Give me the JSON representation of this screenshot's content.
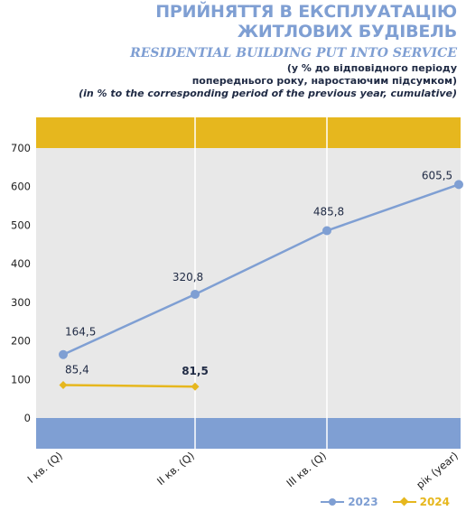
{
  "header": {
    "title_ua_line1": "ПРИЙНЯТТЯ В ЕКСПЛУАТАЦІЮ",
    "title_ua_line2": "ЖИТЛОВИХ БУДІВЕЛЬ",
    "title_en": "RESIDENTIAL BUILDING PUT INTO SERVICE",
    "subtitle_ua_line1": "(у % до відповідного періоду",
    "subtitle_ua_line2": "попереднього року, наростаючим підсумком)",
    "subtitle_en": "(in % to the corresponding period of the previous year, cumulative)"
  },
  "colors": {
    "series_2023": "#7f9fd3",
    "series_2024": "#e6b71e",
    "plot_bg": "#e8e8e8",
    "band_top": "#e6b71e",
    "band_bottom": "#7f9fd3"
  },
  "chart_data": {
    "type": "line",
    "categories": [
      "I кв. (Q)",
      "II кв. (Q)",
      "III кв. (Q)",
      "рік (year)"
    ],
    "ylim": [
      0,
      700
    ],
    "yticks": [
      0,
      100,
      200,
      300,
      400,
      500,
      600,
      700
    ],
    "grid": "vertical",
    "legend_position": "bottom-right",
    "series": [
      {
        "name": "2023",
        "values": [
          164.5,
          320.8,
          485.8,
          605.5
        ],
        "labels": [
          "164,5",
          "320,8",
          "485,8",
          "605,5"
        ]
      },
      {
        "name": "2024",
        "values": [
          85.4,
          81.5,
          null,
          null
        ],
        "labels": [
          "85,4",
          "81,5",
          null,
          null
        ]
      }
    ]
  },
  "legend": {
    "label_2023": "2023",
    "label_2024": "2024"
  }
}
